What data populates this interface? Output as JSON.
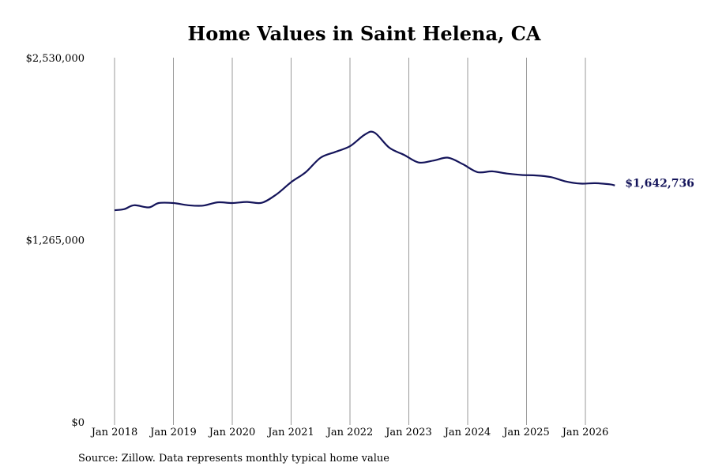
{
  "chart_data": {
    "type": "line",
    "title": "Home Values in Saint Helena, CA",
    "ylim": [
      0,
      2530000
    ],
    "y_ticks": [
      0,
      1265000,
      2530000
    ],
    "y_tick_labels": [
      "$0",
      "$1,265,000",
      "$2,530,000"
    ],
    "x_ticks": [
      "2018-01",
      "2019-01",
      "2020-01",
      "2021-01",
      "2022-01",
      "2023-01",
      "2024-01",
      "2025-01",
      "2026-01"
    ],
    "x_tick_labels": [
      "Jan 2018",
      "Jan 2019",
      "Jan 2020",
      "Jan 2021",
      "Jan 2022",
      "Jan 2023",
      "Jan 2024",
      "Jan 2025",
      "Jan 2026"
    ],
    "grid": "vertical",
    "line_color": "#14145a",
    "end_label": "$1,642,736",
    "series": [
      {
        "values": [
          [
            "2018-01",
            1470000
          ],
          [
            "2018-03",
            1478000
          ],
          [
            "2018-05",
            1505000
          ],
          [
            "2018-08",
            1490000
          ],
          [
            "2018-10",
            1520000
          ],
          [
            "2019-01",
            1520000
          ],
          [
            "2019-04",
            1505000
          ],
          [
            "2019-07",
            1502000
          ],
          [
            "2019-10",
            1525000
          ],
          [
            "2020-01",
            1520000
          ],
          [
            "2020-04",
            1528000
          ],
          [
            "2020-07",
            1522000
          ],
          [
            "2020-10",
            1580000
          ],
          [
            "2021-01",
            1665000
          ],
          [
            "2021-04",
            1735000
          ],
          [
            "2021-07",
            1835000
          ],
          [
            "2021-10",
            1875000
          ],
          [
            "2022-01",
            1915000
          ],
          [
            "2022-04",
            1995000
          ],
          [
            "2022-06",
            2010000
          ],
          [
            "2022-09",
            1905000
          ],
          [
            "2022-12",
            1855000
          ],
          [
            "2023-03",
            1802000
          ],
          [
            "2023-06",
            1815000
          ],
          [
            "2023-09",
            1835000
          ],
          [
            "2023-12",
            1790000
          ],
          [
            "2024-03",
            1735000
          ],
          [
            "2024-06",
            1740000
          ],
          [
            "2024-09",
            1725000
          ],
          [
            "2024-12",
            1715000
          ],
          [
            "2025-03",
            1712000
          ],
          [
            "2025-06",
            1700000
          ],
          [
            "2025-09",
            1670000
          ],
          [
            "2025-12",
            1655000
          ],
          [
            "2026-03",
            1658000
          ],
          [
            "2026-06",
            1650000
          ],
          [
            "2026-07",
            1642736
          ]
        ]
      }
    ]
  },
  "source_note": "Source: Zillow. Data represents monthly typical home value"
}
